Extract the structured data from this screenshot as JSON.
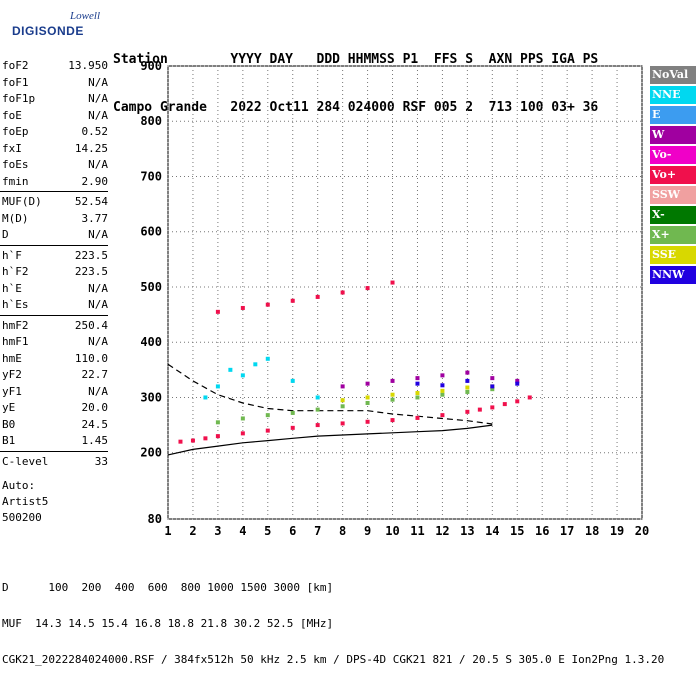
{
  "logo": {
    "line1": "Lowell",
    "line2": "DIGISONDE"
  },
  "header": {
    "line1": "Station        YYYY DAY   DDD HHMMSS P1  FFS S  AXN PPS IGA PS",
    "line2": "Campo Grande   2022 Oct11 284 024000 RSF 005 2  713 100 03+ 36"
  },
  "params": [
    {
      "k": "foF2",
      "v": "13.950"
    },
    {
      "k": "foF1",
      "v": "N/A"
    },
    {
      "k": "foF1p",
      "v": "N/A"
    },
    {
      "k": "foE",
      "v": "N/A"
    },
    {
      "k": "foEp",
      "v": "0.52"
    },
    {
      "k": "fxI",
      "v": "14.25"
    },
    {
      "k": "foEs",
      "v": "N/A"
    },
    {
      "k": "fmin",
      "v": "2.90"
    },
    {
      "k": "MUF(D)",
      "v": "52.54"
    },
    {
      "k": "M(D)",
      "v": "3.77"
    },
    {
      "k": "D",
      "v": "N/A"
    },
    {
      "k": "h`F",
      "v": "223.5"
    },
    {
      "k": "h`F2",
      "v": "223.5"
    },
    {
      "k": "h`E",
      "v": "N/A"
    },
    {
      "k": "h`Es",
      "v": "N/A"
    },
    {
      "k": "hmF2",
      "v": "250.4"
    },
    {
      "k": "hmF1",
      "v": "N/A"
    },
    {
      "k": "hmE",
      "v": "110.0"
    },
    {
      "k": "yF2",
      "v": "22.7"
    },
    {
      "k": "yF1",
      "v": "N/A"
    },
    {
      "k": "yE",
      "v": "20.0"
    },
    {
      "k": "B0",
      "v": "24.5"
    },
    {
      "k": "B1",
      "v": "1.45"
    },
    {
      "k": "C-level",
      "v": "33"
    }
  ],
  "auto": [
    "Auto:",
    "Artist5",
    "500200"
  ],
  "legend": [
    {
      "label": "NoVal",
      "color": "#808080"
    },
    {
      "label": "NNE",
      "color": "#00d8f0"
    },
    {
      "label": "E",
      "color": "#3c9cf0"
    },
    {
      "label": "W",
      "color": "#a000a0"
    },
    {
      "label": "Vo-",
      "color": "#f000c8"
    },
    {
      "label": "Vo+",
      "color": "#f0104c"
    },
    {
      "label": "SSW",
      "color": "#f0a0a0"
    },
    {
      "label": "X-",
      "color": "#007800"
    },
    {
      "label": "X+",
      "color": "#70b850"
    },
    {
      "label": "SSE",
      "color": "#d8d800"
    },
    {
      "label": "NNW",
      "color": "#2000e0"
    }
  ],
  "footer": {
    "line1": "D      100  200  400  600  800 1000 1500 3000 [km]",
    "line2": "MUF  14.3 14.5 15.4 16.8 18.8 21.8 30.2 52.5 [MHz]",
    "line3": "CGK21_2022284024000.RSF / 384fx512h 50 kHz 2.5 km / DPS-4D CGK21 821 / 20.5 S 305.0 E Ion2Png 1.3.20"
  },
  "chart_data": {
    "type": "scatter",
    "xlabel": "",
    "ylabel": "",
    "xlim": [
      1,
      20
    ],
    "ylim": [
      80,
      900
    ],
    "xticks": [
      1,
      2,
      3,
      4,
      5,
      6,
      7,
      8,
      9,
      10,
      11,
      12,
      13,
      14,
      15,
      16,
      17,
      18,
      19,
      20
    ],
    "yticks": [
      80,
      200,
      300,
      400,
      500,
      600,
      700,
      800,
      900
    ],
    "grid": true,
    "series": [
      {
        "name": "Vo+",
        "color": "#f0104c",
        "x": [
          1.5,
          2,
          2.5,
          3,
          4,
          5,
          6,
          7,
          8,
          9,
          10,
          11,
          12,
          13,
          13.5,
          14,
          14.5,
          15,
          15.5
        ],
        "y": [
          220,
          222,
          226,
          230,
          235,
          240,
          245,
          250,
          253,
          256,
          259,
          263,
          268,
          274,
          278,
          282,
          288,
          293,
          300
        ]
      },
      {
        "name": "Vo+ (upper)",
        "color": "#f0104c",
        "x": [
          3,
          4,
          5,
          6,
          7,
          8,
          9,
          10
        ],
        "y": [
          455,
          462,
          468,
          475,
          482,
          490,
          498,
          508
        ]
      },
      {
        "name": "X+",
        "color": "#70b850",
        "x": [
          3,
          4,
          5,
          6,
          7,
          8,
          9,
          10,
          11,
          12,
          13,
          14
        ],
        "y": [
          255,
          262,
          268,
          272,
          278,
          284,
          290,
          296,
          300,
          305,
          310,
          315
        ]
      },
      {
        "name": "NNE",
        "color": "#00d8f0",
        "x": [
          2.5,
          3,
          3.5,
          4,
          4.5,
          5,
          6,
          7
        ],
        "y": [
          300,
          320,
          350,
          340,
          360,
          370,
          330,
          300
        ]
      },
      {
        "name": "W",
        "color": "#a000a0",
        "x": [
          8,
          9,
          10,
          11,
          12,
          13,
          14,
          15
        ],
        "y": [
          320,
          325,
          330,
          335,
          340,
          345,
          335,
          330
        ]
      },
      {
        "name": "SSE",
        "color": "#d8d800",
        "x": [
          8,
          9,
          10,
          11,
          12,
          13,
          14
        ],
        "y": [
          295,
          300,
          305,
          308,
          312,
          318,
          320
        ]
      },
      {
        "name": "NNW",
        "color": "#2000e0",
        "x": [
          11,
          12,
          13,
          14,
          15
        ],
        "y": [
          325,
          322,
          330,
          320,
          325
        ]
      }
    ],
    "profile_dashed": {
      "x": [
        1,
        2,
        3,
        4,
        5,
        6,
        7,
        8,
        9,
        10,
        11,
        12,
        13,
        14
      ],
      "y": [
        360,
        330,
        305,
        290,
        280,
        276,
        276,
        276,
        276,
        270,
        266,
        262,
        258,
        252
      ]
    },
    "profile_solid": {
      "x": [
        1,
        2,
        3,
        4,
        5,
        6,
        7,
        8,
        9,
        10,
        11,
        12,
        13,
        14
      ],
      "y": [
        196,
        206,
        212,
        218,
        222,
        226,
        230,
        232,
        234,
        236,
        238,
        240,
        244,
        250
      ]
    }
  }
}
